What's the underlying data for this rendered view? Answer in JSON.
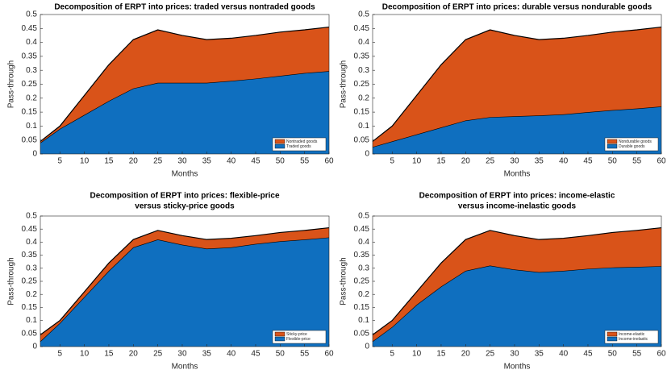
{
  "chart_data": [
    {
      "type": "area",
      "stacked": true,
      "title": [
        "Decomposition of ERPT into prices: traded versus nontraded goods"
      ],
      "xlabel": "Months",
      "ylabel": "Pass-through",
      "x": [
        1,
        5,
        10,
        15,
        20,
        25,
        30,
        35,
        40,
        45,
        50,
        55,
        60
      ],
      "series": [
        {
          "name": "Traded goods",
          "color": "#0f6fbf",
          "values": [
            0.04,
            0.09,
            0.14,
            0.19,
            0.235,
            0.255,
            0.255,
            0.255,
            0.262,
            0.27,
            0.28,
            0.29,
            0.297
          ]
        },
        {
          "name": "Nontraded goods",
          "color": "#d95319",
          "values": [
            0.005,
            0.01,
            0.07,
            0.13,
            0.175,
            0.19,
            0.17,
            0.155,
            0.153,
            0.155,
            0.157,
            0.155,
            0.158
          ]
        }
      ],
      "xlim": [
        1,
        60
      ],
      "xticks": [
        5,
        10,
        15,
        20,
        25,
        30,
        35,
        40,
        45,
        50,
        55,
        60
      ],
      "ylim": [
        0,
        0.5
      ],
      "yticks": [
        0,
        0.05,
        0.1,
        0.15,
        0.2,
        0.25,
        0.3,
        0.35,
        0.4,
        0.45,
        0.5
      ],
      "legend": "lower right"
    },
    {
      "type": "area",
      "stacked": true,
      "title": [
        "Decomposition of ERPT into prices: durable versus nondurable goods"
      ],
      "xlabel": "Months",
      "ylabel": "Pass-through",
      "x": [
        1,
        5,
        10,
        15,
        20,
        25,
        30,
        35,
        40,
        45,
        50,
        55,
        60
      ],
      "series": [
        {
          "name": "Durable goods",
          "color": "#0f6fbf",
          "values": [
            0.025,
            0.045,
            0.07,
            0.095,
            0.12,
            0.132,
            0.135,
            0.138,
            0.142,
            0.15,
            0.157,
            0.163,
            0.17
          ]
        },
        {
          "name": "Nondurable goods",
          "color": "#d95319",
          "values": [
            0.02,
            0.055,
            0.14,
            0.225,
            0.29,
            0.313,
            0.29,
            0.272,
            0.273,
            0.275,
            0.28,
            0.282,
            0.285
          ]
        }
      ],
      "xlim": [
        1,
        60
      ],
      "xticks": [
        5,
        10,
        15,
        20,
        25,
        30,
        35,
        40,
        45,
        50,
        55,
        60
      ],
      "ylim": [
        0,
        0.5
      ],
      "yticks": [
        0,
        0.05,
        0.1,
        0.15,
        0.2,
        0.25,
        0.3,
        0.35,
        0.4,
        0.45,
        0.5
      ],
      "legend": "lower right"
    },
    {
      "type": "area",
      "stacked": true,
      "title": [
        "Decomposition of ERPT into prices: flexible-price",
        "versus sticky-price goods"
      ],
      "xlabel": "Months",
      "ylabel": "Pass-through",
      "x": [
        1,
        5,
        10,
        15,
        20,
        25,
        30,
        35,
        40,
        45,
        50,
        55,
        60
      ],
      "series": [
        {
          "name": "Flexible-price",
          "color": "#0f6fbf",
          "values": [
            0.02,
            0.09,
            0.19,
            0.29,
            0.38,
            0.41,
            0.39,
            0.375,
            0.38,
            0.393,
            0.403,
            0.41,
            0.418
          ]
        },
        {
          "name": "Sticky-price",
          "color": "#d95319",
          "values": [
            0.025,
            0.01,
            0.02,
            0.03,
            0.03,
            0.035,
            0.035,
            0.035,
            0.035,
            0.032,
            0.034,
            0.035,
            0.037
          ]
        }
      ],
      "xlim": [
        1,
        60
      ],
      "xticks": [
        5,
        10,
        15,
        20,
        25,
        30,
        35,
        40,
        45,
        50,
        55,
        60
      ],
      "ylim": [
        0,
        0.5
      ],
      "yticks": [
        0,
        0.05,
        0.1,
        0.15,
        0.2,
        0.25,
        0.3,
        0.35,
        0.4,
        0.45,
        0.5
      ],
      "legend": "lower right"
    },
    {
      "type": "area",
      "stacked": true,
      "title": [
        "Decomposition of ERPT into prices: income-elastic",
        "versus income-inelastic goods"
      ],
      "xlabel": "Months",
      "ylabel": "Pass-through",
      "x": [
        1,
        5,
        10,
        15,
        20,
        25,
        30,
        35,
        40,
        45,
        50,
        55,
        60
      ],
      "series": [
        {
          "name": "Income-inelastic",
          "color": "#0f6fbf",
          "values": [
            0.02,
            0.075,
            0.16,
            0.23,
            0.29,
            0.31,
            0.295,
            0.285,
            0.29,
            0.298,
            0.303,
            0.305,
            0.308
          ]
        },
        {
          "name": "Income-elastic",
          "color": "#d95319",
          "values": [
            0.025,
            0.025,
            0.05,
            0.09,
            0.12,
            0.135,
            0.13,
            0.125,
            0.125,
            0.127,
            0.134,
            0.14,
            0.147
          ]
        }
      ],
      "xlim": [
        1,
        60
      ],
      "xticks": [
        5,
        10,
        15,
        20,
        25,
        30,
        35,
        40,
        45,
        50,
        55,
        60
      ],
      "ylim": [
        0,
        0.5
      ],
      "yticks": [
        0,
        0.05,
        0.1,
        0.15,
        0.2,
        0.25,
        0.3,
        0.35,
        0.4,
        0.45,
        0.5
      ],
      "legend": "lower right"
    }
  ]
}
